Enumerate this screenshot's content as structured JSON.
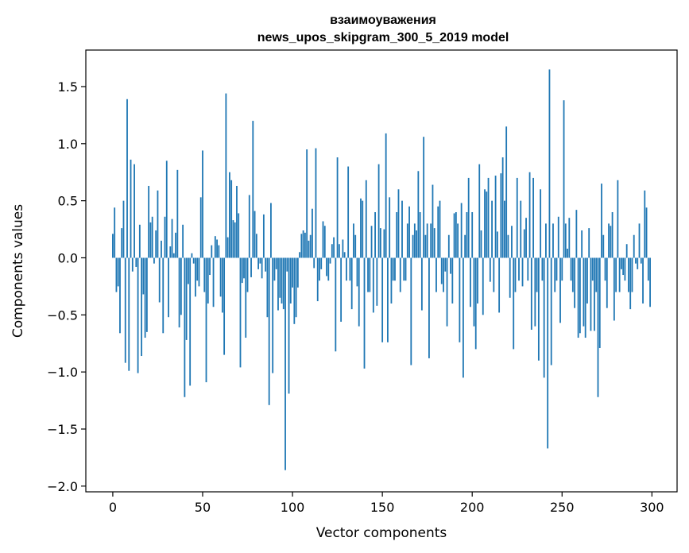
{
  "chart_data": {
    "type": "bar",
    "title": [
      "взаимоуважения",
      "news_upos_skipgram_300_5_2019 model"
    ],
    "xlabel": "Vector components",
    "ylabel": "Components values",
    "xlim": [
      -15,
      314
    ],
    "ylim": [
      -2.05,
      1.82
    ],
    "xticks": [
      0,
      50,
      100,
      150,
      200,
      250,
      300
    ],
    "xtick_labels": [
      "0",
      "50",
      "100",
      "150",
      "200",
      "250",
      "300"
    ],
    "yticks": [
      -2.0,
      -1.5,
      -1.0,
      -0.5,
      0.0,
      0.5,
      1.0,
      1.5
    ],
    "ytick_labels": [
      "−2.0",
      "−1.5",
      "−1.0",
      "−0.5",
      "0.0",
      "0.5",
      "1.0",
      "1.5"
    ],
    "bar_color": "#1f77b4",
    "grid": false,
    "values": [
      0.21,
      0.44,
      -0.3,
      -0.25,
      -0.66,
      0.26,
      0.5,
      -0.92,
      1.39,
      -0.99,
      0.86,
      -0.12,
      0.82,
      -0.08,
      -1.01,
      0.29,
      -0.86,
      -0.32,
      -0.7,
      -0.65,
      0.63,
      0.31,
      0.36,
      -0.05,
      0.24,
      0.59,
      -0.39,
      0.15,
      -0.66,
      0.36,
      0.85,
      -0.52,
      0.1,
      0.34,
      0.04,
      0.22,
      0.77,
      -0.61,
      -0.5,
      0.29,
      -1.22,
      -0.72,
      -0.23,
      -1.12,
      0.04,
      -0.05,
      -0.34,
      -0.2,
      -0.25,
      0.53,
      0.94,
      -0.3,
      -1.09,
      -0.4,
      -0.15,
      0.11,
      -0.43,
      0.19,
      0.16,
      0.11,
      -0.34,
      -0.48,
      -0.85,
      1.44,
      0.18,
      0.75,
      0.68,
      0.33,
      0.31,
      0.63,
      0.39,
      -0.96,
      -0.22,
      -0.18,
      -0.7,
      -0.3,
      0.55,
      -0.17,
      1.2,
      0.41,
      0.21,
      -0.1,
      -0.05,
      -0.18,
      0.38,
      -0.12,
      -0.52,
      -1.29,
      0.48,
      -1.01,
      -0.2,
      -0.1,
      -0.46,
      -0.35,
      -0.4,
      -0.45,
      -1.86,
      -0.12,
      -1.19,
      -0.4,
      -0.26,
      -0.58,
      -0.52,
      -0.26,
      0.05,
      0.21,
      0.24,
      0.22,
      0.95,
      0.15,
      0.2,
      0.43,
      -0.09,
      0.96,
      -0.38,
      -0.2,
      -0.1,
      0.32,
      0.28,
      -0.16,
      -0.2,
      -0.05,
      0.12,
      0.18,
      -0.82,
      0.88,
      0.12,
      -0.56,
      0.16,
      0.05,
      -0.2,
      0.8,
      -0.2,
      -0.45,
      0.3,
      0.2,
      -0.25,
      -0.6,
      0.52,
      0.5,
      -0.97,
      0.68,
      -0.3,
      -0.3,
      0.28,
      -0.48,
      0.4,
      -0.42,
      0.82,
      0.26,
      -0.74,
      0.25,
      1.09,
      -0.74,
      0.53,
      -0.4,
      -0.2,
      -0.2,
      0.4,
      0.6,
      -0.3,
      0.5,
      -0.2,
      -0.2,
      0.3,
      0.45,
      -0.94,
      0.2,
      0.3,
      0.24,
      0.76,
      0.4,
      -0.46,
      1.06,
      0.2,
      0.3,
      -0.88,
      0.3,
      0.64,
      0.26,
      -0.3,
      0.45,
      0.5,
      -0.23,
      -0.3,
      -0.12,
      -0.6,
      0.2,
      -0.14,
      -0.4,
      0.39,
      0.4,
      0.3,
      -0.74,
      0.48,
      -1.05,
      0.2,
      0.4,
      0.7,
      -0.43,
      0.4,
      -0.6,
      -0.8,
      -0.4,
      0.82,
      0.24,
      -0.5,
      0.6,
      0.58,
      0.7,
      -0.21,
      0.5,
      -0.3,
      0.72,
      0.23,
      -0.48,
      0.74,
      0.88,
      0.5,
      1.15,
      0.2,
      -0.35,
      0.28,
      -0.8,
      -0.3,
      0.7,
      -0.2,
      0.5,
      -0.25,
      0.25,
      0.35,
      -0.2,
      0.75,
      -0.63,
      0.7,
      -0.6,
      -0.3,
      -0.9,
      0.6,
      -0.2,
      -1.05,
      0.3,
      -1.67,
      1.65,
      -0.94,
      0.3,
      -0.3,
      -0.2,
      0.36,
      -0.57,
      -0.2,
      1.38,
      0.3,
      0.08,
      0.35,
      -0.2,
      -0.3,
      -0.44,
      0.42,
      -0.7,
      -0.66,
      0.24,
      -0.6,
      -0.7,
      -0.4,
      0.26,
      -0.64,
      -0.2,
      -0.64,
      -0.3,
      -1.22,
      -0.79,
      0.65,
      0.2,
      -0.2,
      -0.44,
      0.3,
      0.28,
      0.4,
      -0.55,
      -0.3,
      0.68,
      -0.3,
      -0.1,
      -0.15,
      -0.2,
      0.12,
      -0.3,
      -0.45,
      -0.3,
      0.2,
      -0.05,
      -0.1,
      0.3,
      -0.05,
      -0.4,
      0.59,
      0.44,
      -0.2,
      -0.43
    ]
  }
}
